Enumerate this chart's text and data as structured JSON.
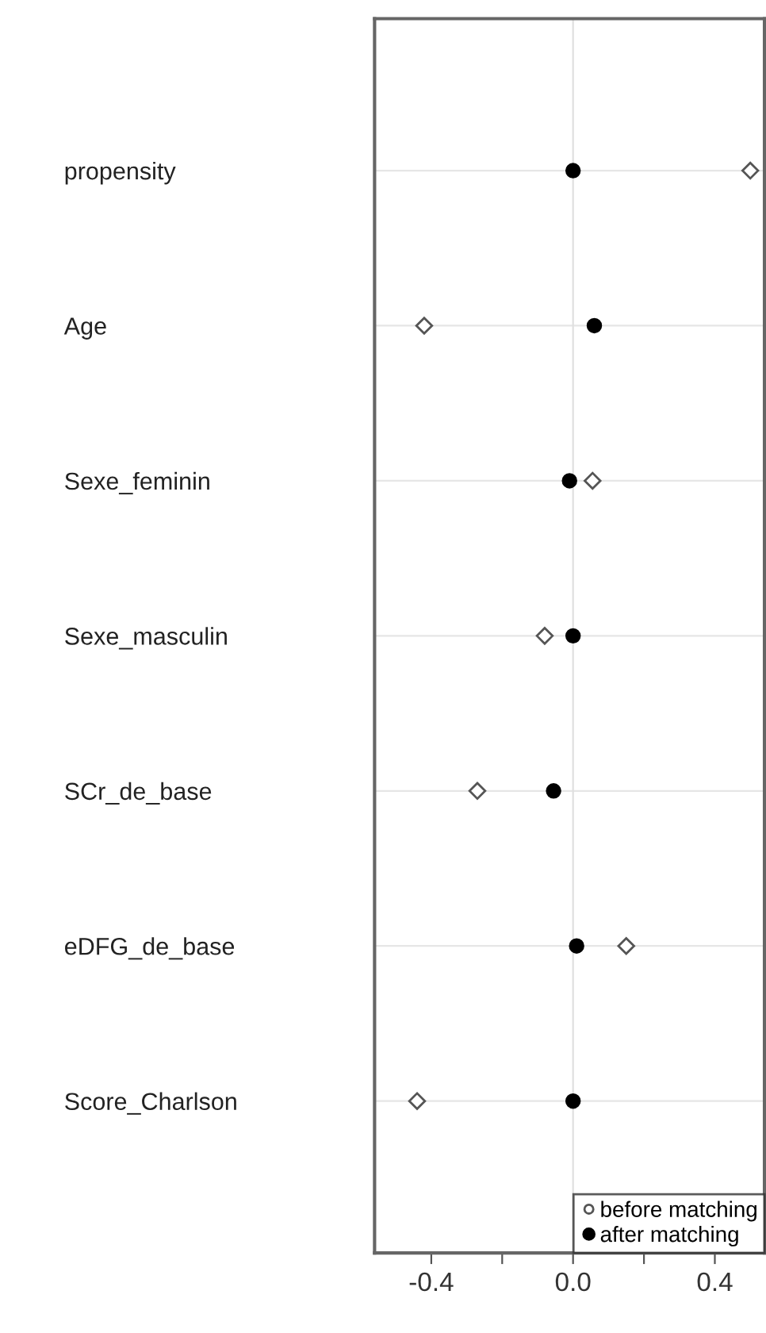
{
  "chart_data": {
    "type": "scatter",
    "orientation": "horizontal",
    "categories": [
      "propensity",
      "Age",
      "Sexe_feminin",
      "Sexe_masculin",
      "SCr_de_base",
      "eDFG_de_base",
      "Score_Charlson"
    ],
    "series": [
      {
        "name": "before matching",
        "color": "#555555",
        "marker": "diamond",
        "values": [
          0.5,
          -0.42,
          0.055,
          -0.08,
          -0.27,
          0.15,
          -0.44
        ]
      },
      {
        "name": "after matching",
        "color": "#000000",
        "marker": "circle",
        "values": [
          0.0,
          0.06,
          -0.01,
          0.0,
          -0.055,
          0.01,
          0.0
        ]
      }
    ],
    "xlim": [
      -0.56,
      0.54
    ],
    "xticks": [
      {
        "value": -0.4,
        "label": "-0.4"
      },
      {
        "value": -0.2,
        "label": null
      },
      {
        "value": 0.0,
        "label": "0.0"
      },
      {
        "value": 0.2,
        "label": null
      },
      {
        "value": 0.4,
        "label": "0.4"
      }
    ],
    "ref_lines": [
      {
        "axis": "x",
        "value": 0.0,
        "color": "#e0e0e0"
      }
    ],
    "grid": "y",
    "legend": "bottom right"
  }
}
